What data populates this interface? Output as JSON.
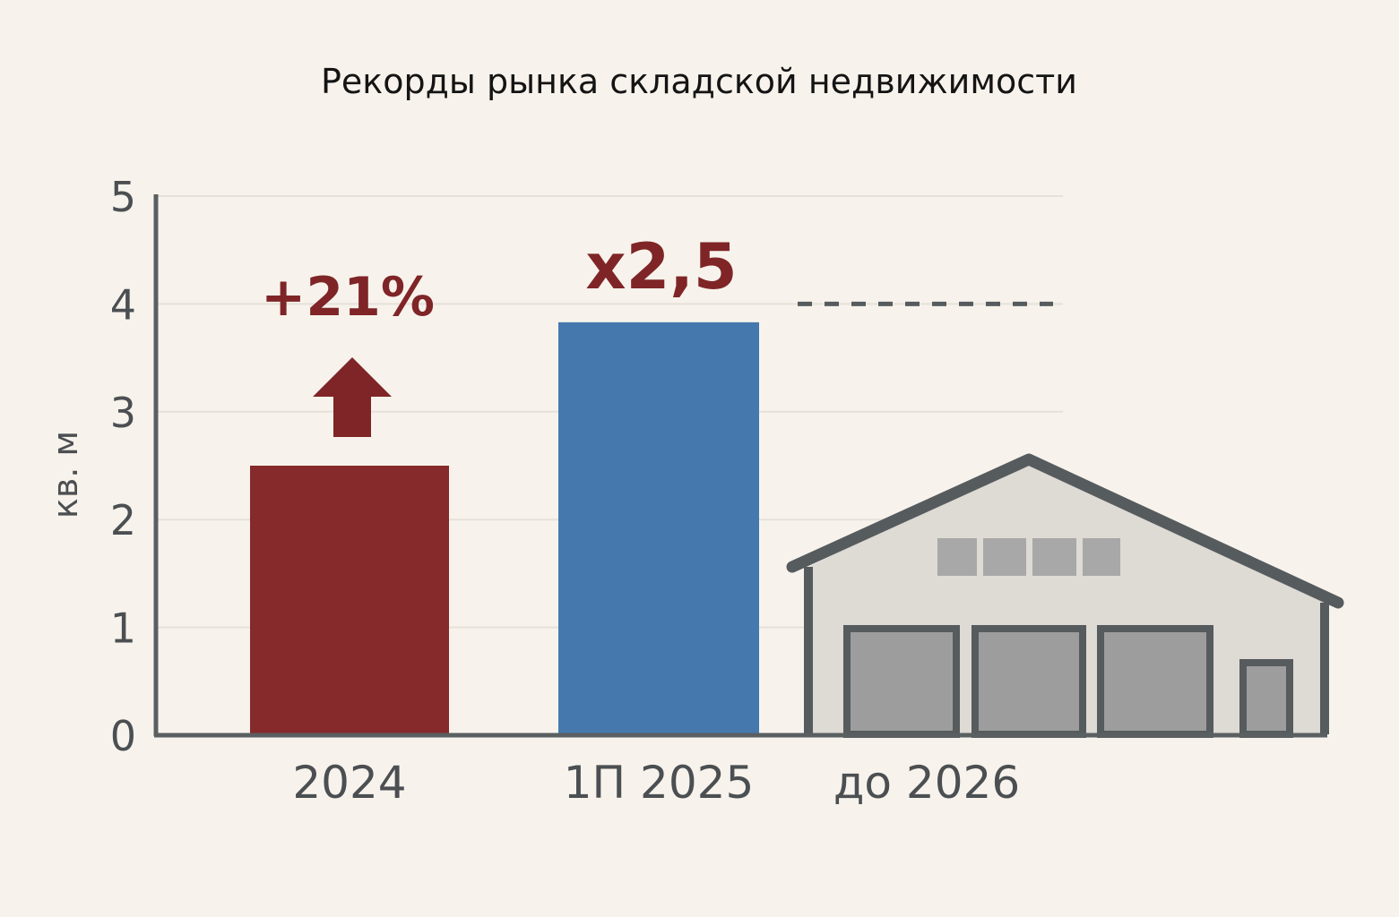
{
  "chart_data": {
    "type": "bar",
    "title": "Рекорды рынка складской недвижимости",
    "ylabel": "кв. м",
    "xlabel": "",
    "ylim": [
      0,
      5
    ],
    "yticks": [
      "0",
      "1",
      "2",
      "3",
      "4",
      "5"
    ],
    "categories": [
      "2024",
      "1П 2025",
      "до 2026"
    ],
    "values": [
      2.5,
      3.83,
      4.0
    ],
    "bar_colors": [
      "#862a2b",
      "#4579ae"
    ],
    "annotations": [
      {
        "text": "+21%",
        "category": "2024"
      },
      {
        "text": "x2,5",
        "category": "1П 2025"
      }
    ],
    "target_line": {
      "category": "до 2026",
      "value": 4.0,
      "style": "dashed"
    },
    "grid": true,
    "icons": [
      "up-arrow-icon",
      "warehouse-icon"
    ],
    "colors": {
      "background": "#f7f3ec",
      "axis": "#5a5f62",
      "grid": "#e6e1d9",
      "annotation": "#7f2527",
      "warehouse_outline": "#565b5e",
      "warehouse_fill": "#dedad4",
      "warehouse_door": "#9d9d9d"
    }
  }
}
